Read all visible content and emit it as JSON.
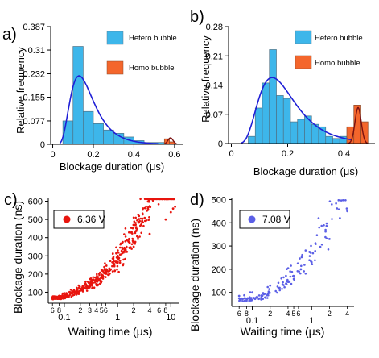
{
  "chart_data": [
    {
      "panel": "a)",
      "type": "bar",
      "xlabel": "Blockage duration (μs)",
      "ylabel": "Relative frequency",
      "xlim": [
        -0.01,
        0.64
      ],
      "ylim": [
        0,
        0.387
      ],
      "xticks": [
        0,
        0.2,
        0.4,
        0.6
      ],
      "xtick_labels": [
        "0",
        "0.2",
        "0.4",
        "0.6"
      ],
      "yticks": [
        0,
        0.077,
        0.155,
        0.232,
        0.31,
        0.387
      ],
      "ytick_labels": [
        "0",
        "0.077",
        "0.155",
        "0.232",
        "0.31",
        "0.387"
      ],
      "legend_placement": "top-right",
      "colors": {
        "hetero": "#3db6ea",
        "homo": "#f4662c",
        "fit": "#1f1fd6",
        "fit_homo": "#7a1010"
      },
      "series": [
        {
          "name": "Hetero bubble",
          "bins": [
            [
              0.05,
              0.1
            ],
            [
              0.1,
              0.15
            ],
            [
              0.15,
              0.2
            ],
            [
              0.2,
              0.25
            ],
            [
              0.25,
              0.3
            ],
            [
              0.3,
              0.35
            ],
            [
              0.35,
              0.4
            ],
            [
              0.4,
              0.45
            ],
            [
              0.45,
              0.5
            ],
            [
              0.5,
              0.55
            ],
            [
              0.55,
              0.6
            ]
          ],
          "values": [
            0.077,
            0.322,
            0.108,
            0.068,
            0.047,
            0.036,
            0.024,
            0.012,
            0.006,
            0.006,
            0.006
          ]
        },
        {
          "name": "Homo bubble",
          "bins": [
            [
              0.55,
              0.575
            ],
            [
              0.575,
              0.6
            ]
          ],
          "values": [
            0.018,
            0.008
          ]
        }
      ],
      "fit": {
        "series": "Hetero bubble",
        "shape": "lognormal",
        "peak_x": 0.13,
        "peak_y": 0.225
      },
      "fit_homo": {
        "series": "Homo bubble",
        "center": 0.58,
        "peak_y": 0.021
      }
    },
    {
      "panel": "b)",
      "type": "bar",
      "xlabel": "Blockage duration (μs)",
      "ylabel": "Relative frequency",
      "xlim": [
        -0.01,
        0.51
      ],
      "ylim": [
        0,
        0.28
      ],
      "xticks": [
        0,
        0.2,
        0.4
      ],
      "xtick_labels": [
        "0",
        "0.2",
        "0.4"
      ],
      "yticks": [
        0,
        0.07,
        0.14,
        0.21,
        0.28
      ],
      "ytick_labels": [
        "0",
        "0.07",
        "0.14",
        "0.21",
        "0.28"
      ],
      "legend_placement": "top-right",
      "colors": {
        "hetero": "#3db6ea",
        "homo": "#f4662c",
        "fit": "#1f1fd6",
        "fit_homo": "#7a1010"
      },
      "series": [
        {
          "name": "Hetero bubble",
          "bins": [
            [
              0.06,
              0.085
            ],
            [
              0.085,
              0.11
            ],
            [
              0.11,
              0.135
            ],
            [
              0.135,
              0.16
            ],
            [
              0.16,
              0.185
            ],
            [
              0.185,
              0.21
            ],
            [
              0.21,
              0.235
            ],
            [
              0.235,
              0.26
            ],
            [
              0.26,
              0.285
            ],
            [
              0.285,
              0.31
            ],
            [
              0.31,
              0.335
            ],
            [
              0.335,
              0.36
            ],
            [
              0.36,
              0.385
            ],
            [
              0.385,
              0.41
            ],
            [
              0.41,
              0.435
            ]
          ],
          "values": [
            0.017,
            0.085,
            0.145,
            0.225,
            0.115,
            0.108,
            0.052,
            0.058,
            0.066,
            0.046,
            0.04,
            0.017,
            0.012,
            0.017,
            0.017
          ]
        },
        {
          "name": "Homo bubble",
          "bins": [
            [
              0.41,
              0.435
            ],
            [
              0.435,
              0.46
            ],
            [
              0.46,
              0.485
            ]
          ],
          "values": [
            0.04,
            0.092,
            0.052
          ]
        }
      ],
      "fit": {
        "series": "Hetero bubble",
        "shape": "lognormal",
        "peak_x": 0.145,
        "peak_y": 0.158
      },
      "fit_homo": {
        "series": "Homo bubble",
        "center": 0.45,
        "peak_y": 0.086
      }
    },
    {
      "panel": "c)",
      "type": "scatter",
      "xscale": "log",
      "xlabel": "Waiting time (μs)",
      "ylabel": "Blockage duration (ns)",
      "xlim": [
        0.05,
        14
      ],
      "ylim": [
        40,
        620
      ],
      "major_xticks": [
        0.1,
        1,
        10
      ],
      "major_xtick_labels": [
        "0.1",
        "1",
        "10"
      ],
      "minor_xticks": [
        0.06,
        0.08,
        0.2,
        0.3,
        0.4,
        0.5,
        0.6,
        2,
        4,
        6,
        8
      ],
      "minor_xtick_labels": [
        "6",
        "8",
        "2",
        "3",
        "4",
        "5",
        "6",
        "2",
        "4",
        "6",
        "8"
      ],
      "yticks": [
        100,
        200,
        300,
        400,
        500,
        600
      ],
      "ytick_labels": [
        "100",
        "200",
        "300",
        "400",
        "500",
        "600"
      ],
      "legend": "6.36 V",
      "legend_placement": "top-left",
      "color": "#e8150e",
      "trend": {
        "a": 280,
        "b": 0.56,
        "n": 620,
        "x_range": [
          0.06,
          12
        ],
        "y_min": 62,
        "spread": 0.11
      },
      "points": [
        [
          0.06,
          70
        ],
        [
          0.08,
          80
        ],
        [
          0.1,
          95
        ],
        [
          0.15,
          100
        ],
        [
          0.3,
          130
        ],
        [
          0.5,
          160
        ],
        [
          1,
          260
        ],
        [
          2,
          350
        ],
        [
          4,
          420
        ],
        [
          8,
          500
        ],
        [
          10,
          540
        ],
        [
          11,
          560
        ],
        [
          12,
          570
        ]
      ]
    },
    {
      "panel": "d)",
      "type": "scatter",
      "xscale": "log",
      "xlabel": "Waiting time (μs)",
      "ylabel": "Blockage duration (ns)",
      "xlim": [
        0.045,
        5.2
      ],
      "ylim": [
        40,
        505
      ],
      "major_xticks": [
        0.1,
        1
      ],
      "major_xtick_labels": [
        "0.1",
        "1"
      ],
      "minor_xticks": [
        0.06,
        0.08,
        0.2,
        0.4,
        0.5,
        0.6,
        2,
        4
      ],
      "minor_xtick_labels": [
        "6",
        "8",
        "2",
        "4",
        "5",
        "6",
        "2",
        "4"
      ],
      "yticks": [
        100,
        200,
        300,
        400,
        500
      ],
      "ytick_labels": [
        "100",
        "200",
        "300",
        "400",
        "500"
      ],
      "legend": "7.08 V",
      "legend_placement": "top-left",
      "color": "#5b5fe6",
      "trend": {
        "a": 270,
        "b": 0.6,
        "n": 160,
        "x_range": [
          0.06,
          4
        ],
        "y_min": 62,
        "spread": 0.13
      },
      "points": [
        [
          0.06,
          85
        ],
        [
          0.1,
          100
        ],
        [
          0.2,
          130
        ],
        [
          0.5,
          170
        ],
        [
          1,
          230
        ],
        [
          2,
          330
        ],
        [
          3,
          420
        ],
        [
          4,
          450
        ]
      ]
    }
  ]
}
